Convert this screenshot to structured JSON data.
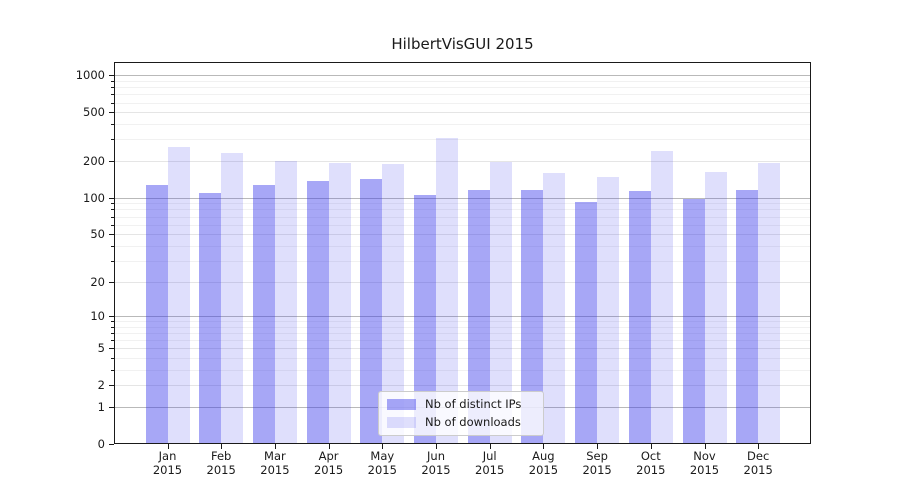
{
  "chart_data": {
    "type": "bar",
    "title": "HilbertVisGUI 2015",
    "categories": [
      "Jan",
      "Feb",
      "Mar",
      "Apr",
      "May",
      "Jun",
      "Jul",
      "Aug",
      "Sep",
      "Oct",
      "Nov",
      "Dec"
    ],
    "year": "2015",
    "series": [
      {
        "name": "Nb of distinct IPs",
        "values": [
          128,
          110,
          126,
          137,
          143,
          105,
          116,
          115,
          92,
          114,
          97,
          115
        ]
      },
      {
        "name": "Nb of downloads",
        "values": [
          260,
          232,
          200,
          192,
          190,
          308,
          198,
          161,
          149,
          240,
          163,
          194
        ]
      }
    ],
    "xlabel": "",
    "ylabel": "",
    "y_scale": "log1p",
    "y_major_ticks": [
      0,
      1,
      2,
      5,
      10,
      20,
      50,
      100,
      200,
      500,
      1000
    ],
    "y_minor_ticks": [
      3,
      4,
      6,
      7,
      8,
      9,
      30,
      40,
      60,
      70,
      80,
      90,
      300,
      400,
      600,
      700,
      800,
      900
    ],
    "ylim": [
      0,
      1280
    ],
    "grid": true,
    "legend_position": "lower center"
  },
  "colors": {
    "bar_distinct_ips": "rgba(50,50,235,0.43)",
    "bar_downloads": "rgba(50,50,235,0.155)",
    "decade_gridline": "#b9b9b9",
    "major_gridline": "#e5e5e5",
    "minor_gridline": "#f1f1f1",
    "axis": "#1a1a1a"
  }
}
